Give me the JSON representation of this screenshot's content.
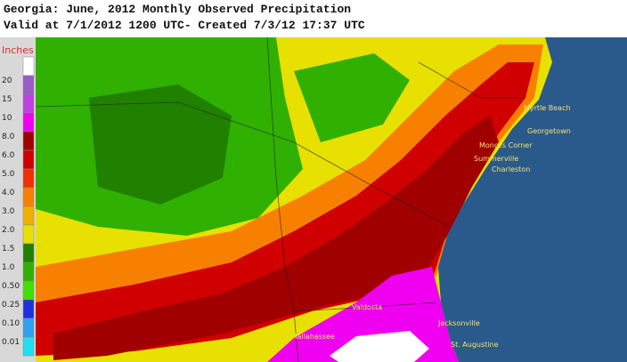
{
  "header": {
    "title": "Georgia: June, 2012 Monthly Observed Precipitation",
    "subtitle": "Valid at 7/1/2012 1200 UTC- Created 7/3/12 17:37 UTC"
  },
  "legend": {
    "title": "Inches",
    "items": [
      {
        "label": "20",
        "color": "#9a5cc8"
      },
      {
        "label": "15",
        "color": "#c040e0"
      },
      {
        "label": "10",
        "color": "#f000f0"
      },
      {
        "label": "8.0",
        "color": "#a00000"
      },
      {
        "label": "6.0",
        "color": "#d00000"
      },
      {
        "label": "5.0",
        "color": "#f03000"
      },
      {
        "label": "4.0",
        "color": "#f88000"
      },
      {
        "label": "3.0",
        "color": "#f0b000"
      },
      {
        "label": "2.0",
        "color": "#e8e000"
      },
      {
        "label": "1.5",
        "color": "#208000"
      },
      {
        "label": "1.0",
        "color": "#30b000"
      },
      {
        "label": "0.50",
        "color": "#40e000"
      },
      {
        "label": "0.25",
        "color": "#2030e0"
      },
      {
        "label": "0.10",
        "color": "#30a0f0"
      },
      {
        "label": "0.01",
        "color": "#20e0f0"
      }
    ]
  },
  "places": [
    "Myrtle Beach",
    "Georgetown",
    "Moncks Corner",
    "Summerville",
    "Charleston",
    "Valdosta",
    "Jacksonville",
    "St. Augustine",
    "Tallahassee"
  ]
}
